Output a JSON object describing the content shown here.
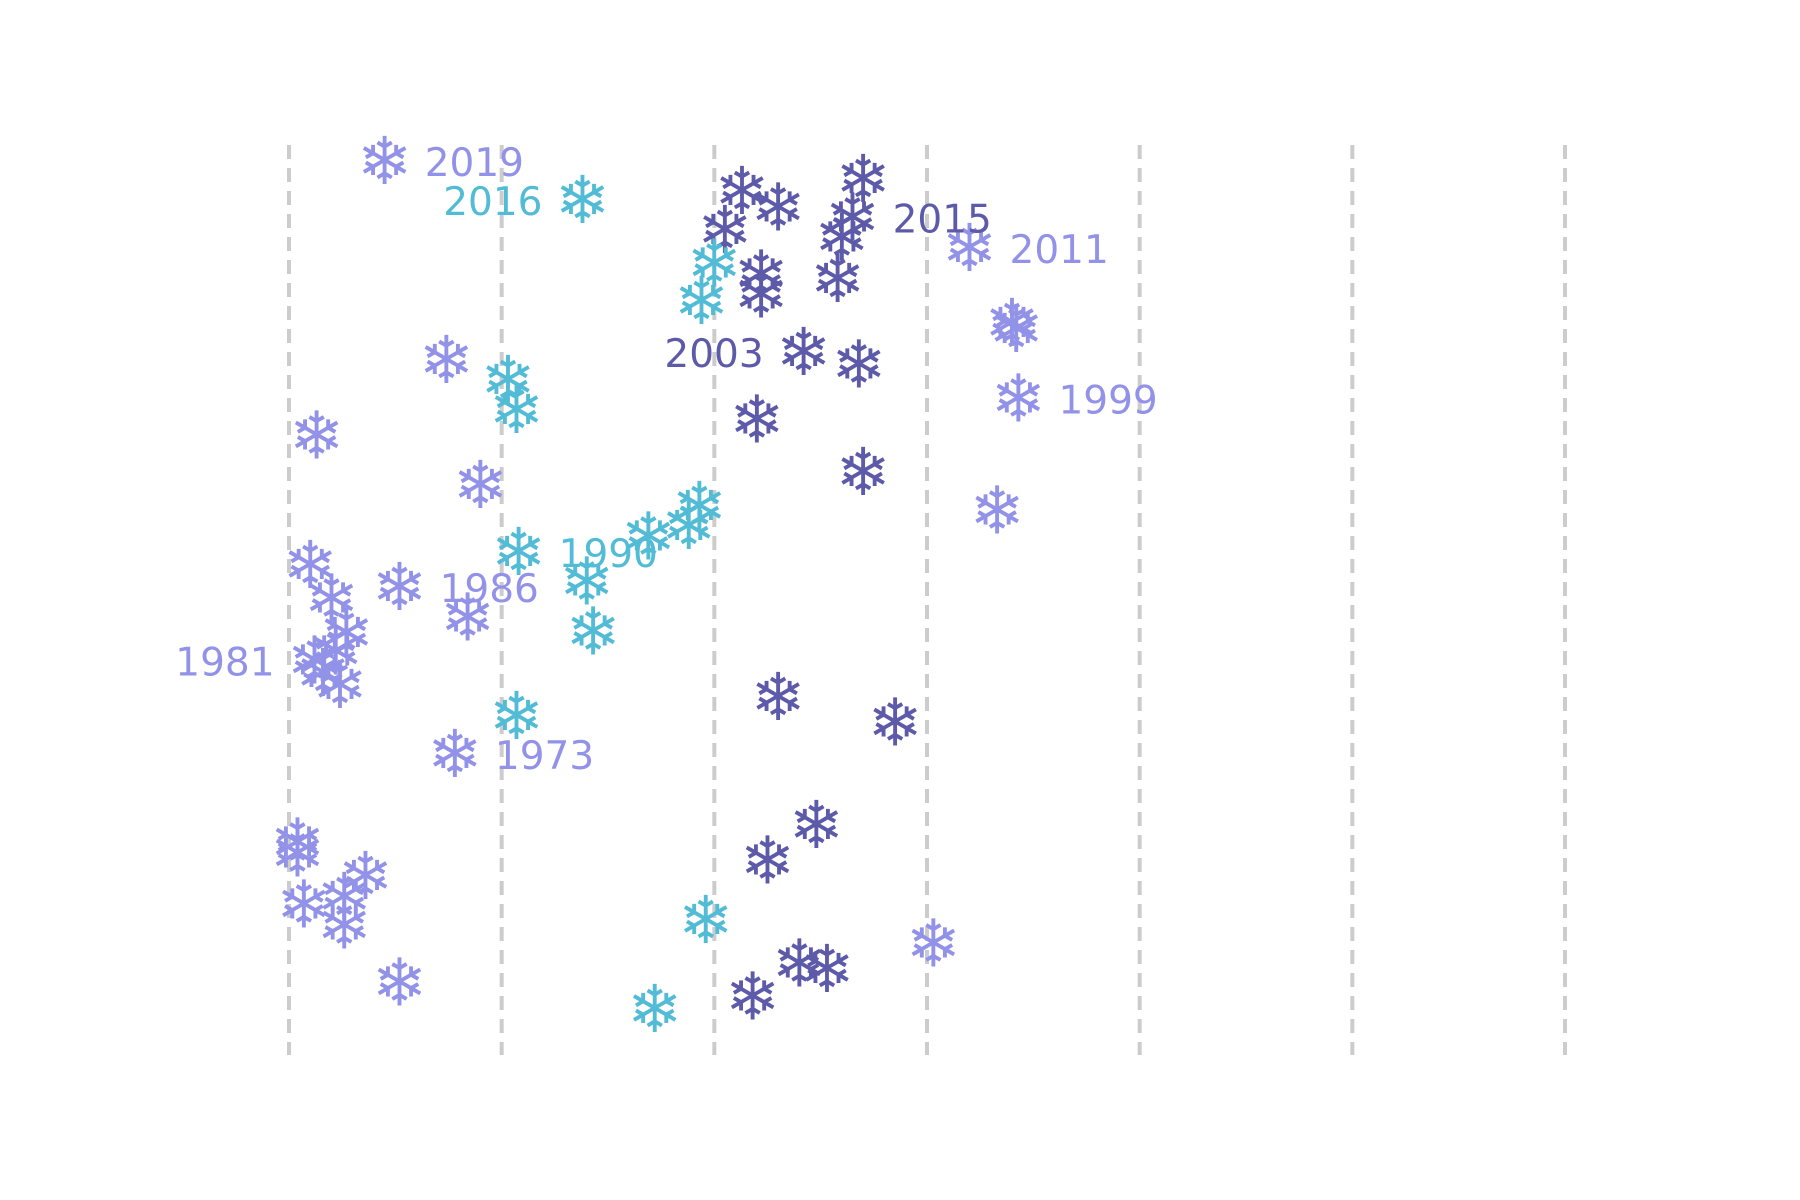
{
  "chart_data": {
    "type": "scatter",
    "marker": "snowflake",
    "title": "",
    "xlabel": "",
    "ylabel": "",
    "grid": {
      "vertical": true,
      "style": "dashed",
      "color": "#cccccc"
    },
    "gridline_positions": [
      0,
      1,
      2,
      3,
      4,
      5,
      6
    ],
    "xlim": [
      0,
      6
    ],
    "ylim": [
      0,
      100
    ],
    "colors": {
      "light_purple": "#9192e8",
      "cyan": "#52bcd6",
      "dark_purple": "#5e5aaa"
    },
    "points": [
      {
        "x": 0.45,
        "y": 98.2,
        "color": "light_purple",
        "label": "2019",
        "label_side": "right"
      },
      {
        "x": 1.38,
        "y": 93.9,
        "color": "cyan",
        "label": "2016",
        "label_side": "left"
      },
      {
        "x": 2.13,
        "y": 94.9,
        "color": "dark_purple",
        "label": "",
        "label_side": ""
      },
      {
        "x": 2.3,
        "y": 93.1,
        "color": "dark_purple",
        "label": "",
        "label_side": ""
      },
      {
        "x": 2.05,
        "y": 90.6,
        "color": "dark_purple",
        "label": "",
        "label_side": ""
      },
      {
        "x": 2.7,
        "y": 96.2,
        "color": "dark_purple",
        "label": "",
        "label_side": ""
      },
      {
        "x": 2.65,
        "y": 92.0,
        "color": "dark_purple",
        "label": "2015",
        "label_side": "right"
      },
      {
        "x": 2.6,
        "y": 89.8,
        "color": "dark_purple",
        "label": "",
        "label_side": ""
      },
      {
        "x": 3.2,
        "y": 88.6,
        "color": "light_purple",
        "label": "2011",
        "label_side": "right"
      },
      {
        "x": 2.0,
        "y": 86.9,
        "color": "cyan",
        "label": "",
        "label_side": ""
      },
      {
        "x": 2.22,
        "y": 85.7,
        "color": "dark_purple",
        "label": "",
        "label_side": ""
      },
      {
        "x": 2.22,
        "y": 83.5,
        "color": "dark_purple",
        "label": "",
        "label_side": ""
      },
      {
        "x": 2.58,
        "y": 85.2,
        "color": "dark_purple",
        "label": "",
        "label_side": ""
      },
      {
        "x": 1.94,
        "y": 82.8,
        "color": "cyan",
        "label": "",
        "label_side": ""
      },
      {
        "x": 3.4,
        "y": 80.4,
        "color": "light_purple",
        "label": "",
        "label_side": ""
      },
      {
        "x": 3.42,
        "y": 79.7,
        "color": "light_purple",
        "label": "",
        "label_side": ""
      },
      {
        "x": 2.42,
        "y": 77.2,
        "color": "dark_purple",
        "label": "2003",
        "label_side": "left"
      },
      {
        "x": 2.68,
        "y": 75.8,
        "color": "dark_purple",
        "label": "",
        "label_side": ""
      },
      {
        "x": 0.74,
        "y": 76.3,
        "color": "light_purple",
        "label": "",
        "label_side": ""
      },
      {
        "x": 1.03,
        "y": 74.1,
        "color": "cyan",
        "label": "",
        "label_side": ""
      },
      {
        "x": 1.07,
        "y": 70.8,
        "color": "cyan",
        "label": "",
        "label_side": ""
      },
      {
        "x": 3.43,
        "y": 72.1,
        "color": "light_purple",
        "label": "1999",
        "label_side": "right"
      },
      {
        "x": 2.2,
        "y": 69.8,
        "color": "dark_purple",
        "label": "",
        "label_side": ""
      },
      {
        "x": 0.13,
        "y": 68.0,
        "color": "light_purple",
        "label": "",
        "label_side": ""
      },
      {
        "x": 2.7,
        "y": 64.0,
        "color": "dark_purple",
        "label": "",
        "label_side": ""
      },
      {
        "x": 0.9,
        "y": 62.6,
        "color": "light_purple",
        "label": "",
        "label_side": ""
      },
      {
        "x": 3.33,
        "y": 59.8,
        "color": "light_purple",
        "label": "",
        "label_side": ""
      },
      {
        "x": 1.93,
        "y": 60.3,
        "color": "cyan",
        "label": "",
        "label_side": ""
      },
      {
        "x": 1.88,
        "y": 58.1,
        "color": "cyan",
        "label": "",
        "label_side": ""
      },
      {
        "x": 1.69,
        "y": 56.9,
        "color": "cyan",
        "label": "",
        "label_side": ""
      },
      {
        "x": 1.08,
        "y": 55.2,
        "color": "cyan",
        "label": "1990",
        "label_side": "right"
      },
      {
        "x": 1.4,
        "y": 52.0,
        "color": "cyan",
        "label": "",
        "label_side": ""
      },
      {
        "x": 0.1,
        "y": 53.8,
        "color": "light_purple",
        "label": "",
        "label_side": ""
      },
      {
        "x": 0.2,
        "y": 50.1,
        "color": "light_purple",
        "label": "",
        "label_side": ""
      },
      {
        "x": 0.52,
        "y": 51.4,
        "color": "light_purple",
        "label": "1986",
        "label_side": "right"
      },
      {
        "x": 0.84,
        "y": 48.0,
        "color": "light_purple",
        "label": "",
        "label_side": ""
      },
      {
        "x": 1.43,
        "y": 46.5,
        "color": "cyan",
        "label": "",
        "label_side": ""
      },
      {
        "x": 0.27,
        "y": 46.3,
        "color": "light_purple",
        "label": "",
        "label_side": ""
      },
      {
        "x": 0.22,
        "y": 44.3,
        "color": "light_purple",
        "label": "",
        "label_side": ""
      },
      {
        "x": 0.12,
        "y": 43.3,
        "color": "light_purple",
        "label": "1981",
        "label_side": "left"
      },
      {
        "x": 0.16,
        "y": 41.9,
        "color": "light_purple",
        "label": "",
        "label_side": ""
      },
      {
        "x": 0.24,
        "y": 40.6,
        "color": "light_purple",
        "label": "",
        "label_side": ""
      },
      {
        "x": 2.3,
        "y": 39.3,
        "color": "dark_purple",
        "label": "",
        "label_side": ""
      },
      {
        "x": 2.85,
        "y": 36.5,
        "color": "dark_purple",
        "label": "",
        "label_side": ""
      },
      {
        "x": 1.07,
        "y": 37.2,
        "color": "cyan",
        "label": "",
        "label_side": ""
      },
      {
        "x": 0.78,
        "y": 33.0,
        "color": "light_purple",
        "label": "1973",
        "label_side": "right"
      },
      {
        "x": 2.48,
        "y": 25.2,
        "color": "dark_purple",
        "label": "",
        "label_side": ""
      },
      {
        "x": 0.04,
        "y": 23.3,
        "color": "light_purple",
        "label": "",
        "label_side": ""
      },
      {
        "x": 0.04,
        "y": 22.1,
        "color": "light_purple",
        "label": "",
        "label_side": ""
      },
      {
        "x": 2.25,
        "y": 21.3,
        "color": "dark_purple",
        "label": "",
        "label_side": ""
      },
      {
        "x": 0.36,
        "y": 19.6,
        "color": "light_purple",
        "label": "",
        "label_side": ""
      },
      {
        "x": 0.26,
        "y": 17.3,
        "color": "light_purple",
        "label": "",
        "label_side": ""
      },
      {
        "x": 0.07,
        "y": 16.5,
        "color": "light_purple",
        "label": "",
        "label_side": ""
      },
      {
        "x": 0.26,
        "y": 14.2,
        "color": "light_purple",
        "label": "",
        "label_side": ""
      },
      {
        "x": 1.96,
        "y": 14.8,
        "color": "cyan",
        "label": "",
        "label_side": ""
      },
      {
        "x": 3.03,
        "y": 12.2,
        "color": "light_purple",
        "label": "",
        "label_side": ""
      },
      {
        "x": 2.4,
        "y": 10.0,
        "color": "dark_purple",
        "label": "",
        "label_side": ""
      },
      {
        "x": 2.53,
        "y": 9.4,
        "color": "dark_purple",
        "label": "",
        "label_side": ""
      },
      {
        "x": 0.52,
        "y": 7.9,
        "color": "light_purple",
        "label": "",
        "label_side": ""
      },
      {
        "x": 2.18,
        "y": 6.4,
        "color": "dark_purple",
        "label": "",
        "label_side": ""
      },
      {
        "x": 1.72,
        "y": 5.0,
        "color": "cyan",
        "label": "",
        "label_side": ""
      }
    ]
  }
}
